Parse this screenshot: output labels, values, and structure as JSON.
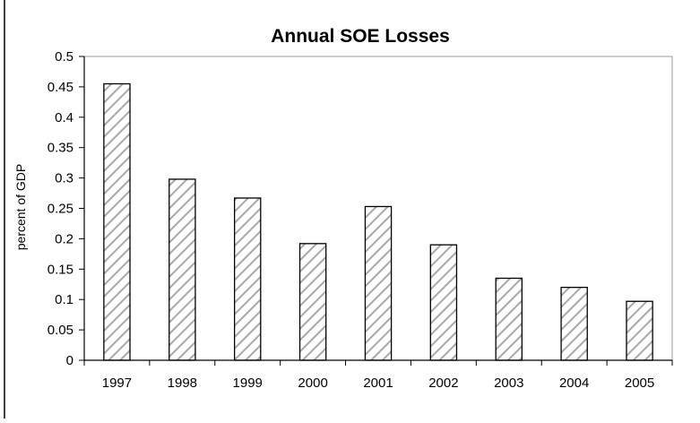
{
  "chart_data": {
    "type": "bar",
    "title": "Annual SOE Losses",
    "xlabel": "",
    "ylabel": "percent of GDP",
    "categories": [
      "1997",
      "1998",
      "1999",
      "2000",
      "2001",
      "2002",
      "2003",
      "2004",
      "2005"
    ],
    "values": [
      0.455,
      0.298,
      0.267,
      0.192,
      0.253,
      0.19,
      0.135,
      0.12,
      0.097
    ],
    "ylim": [
      0,
      0.5
    ],
    "yticks": [
      "0",
      "0.05",
      "0.1",
      "0.15",
      "0.2",
      "0.25",
      "0.3",
      "0.35",
      "0.4",
      "0.45",
      "0.5"
    ],
    "grid": false,
    "legend": "none",
    "bar_fill": "hatched diagonal",
    "colors": {
      "bar_stroke": "#000000",
      "hatch": "#a8a8a8",
      "plot_border": "#999999",
      "axis": "#000000"
    }
  }
}
